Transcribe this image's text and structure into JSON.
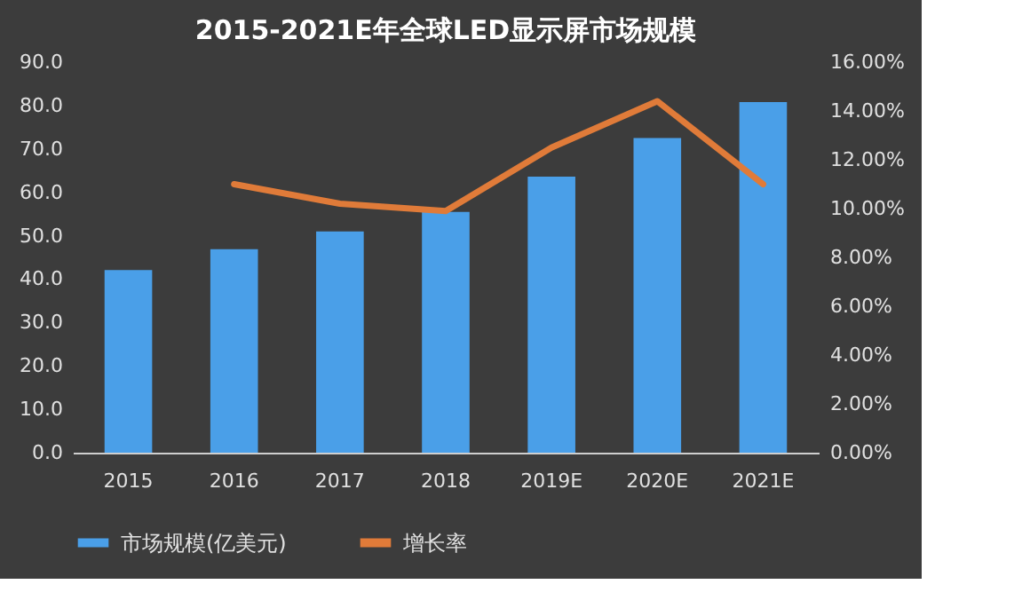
{
  "chart_data": {
    "type": "bar",
    "title": "2015-2021E年全球LED显示屏市场规模",
    "categories": [
      "2015",
      "2016",
      "2017",
      "2018",
      "2019E",
      "2020E",
      "2021E"
    ],
    "series": [
      {
        "name": "市场规模(亿美元)",
        "color": "#4a9fe8",
        "values": [
          42.1,
          46.9,
          51.0,
          55.5,
          63.6,
          72.5,
          80.8
        ]
      },
      {
        "name": "增长率",
        "type": "line",
        "axis": "y2",
        "color": "#e07b39",
        "values": [
          null,
          11.0,
          10.2,
          9.9,
          12.5,
          14.4,
          11.0
        ]
      }
    ],
    "ylim": [
      0,
      90
    ],
    "yticks": [
      {
        "value": 0,
        "label": "0.0"
      },
      {
        "value": 10,
        "label": "10.0"
      },
      {
        "value": 20,
        "label": "20.0"
      },
      {
        "value": 30,
        "label": "30.0"
      },
      {
        "value": 40,
        "label": "40.0"
      },
      {
        "value": 50,
        "label": "50.0"
      },
      {
        "value": 60,
        "label": "60.0"
      },
      {
        "value": 70,
        "label": "70.0"
      },
      {
        "value": 80,
        "label": "80.0"
      },
      {
        "value": 90,
        "label": "90.0"
      }
    ],
    "y2lim": [
      0,
      16
    ],
    "y2ticks": [
      {
        "value": 0,
        "label": "0.00%"
      },
      {
        "value": 2,
        "label": "2.00%"
      },
      {
        "value": 4,
        "label": "4.00%"
      },
      {
        "value": 6,
        "label": "6.00%"
      },
      {
        "value": 8,
        "label": "8.00%"
      },
      {
        "value": 10,
        "label": "10.00%"
      },
      {
        "value": 12,
        "label": "12.00%"
      },
      {
        "value": 14,
        "label": "14.00%"
      },
      {
        "value": 16,
        "label": "16.00%"
      }
    ],
    "grid": false,
    "legend": "bottom"
  }
}
